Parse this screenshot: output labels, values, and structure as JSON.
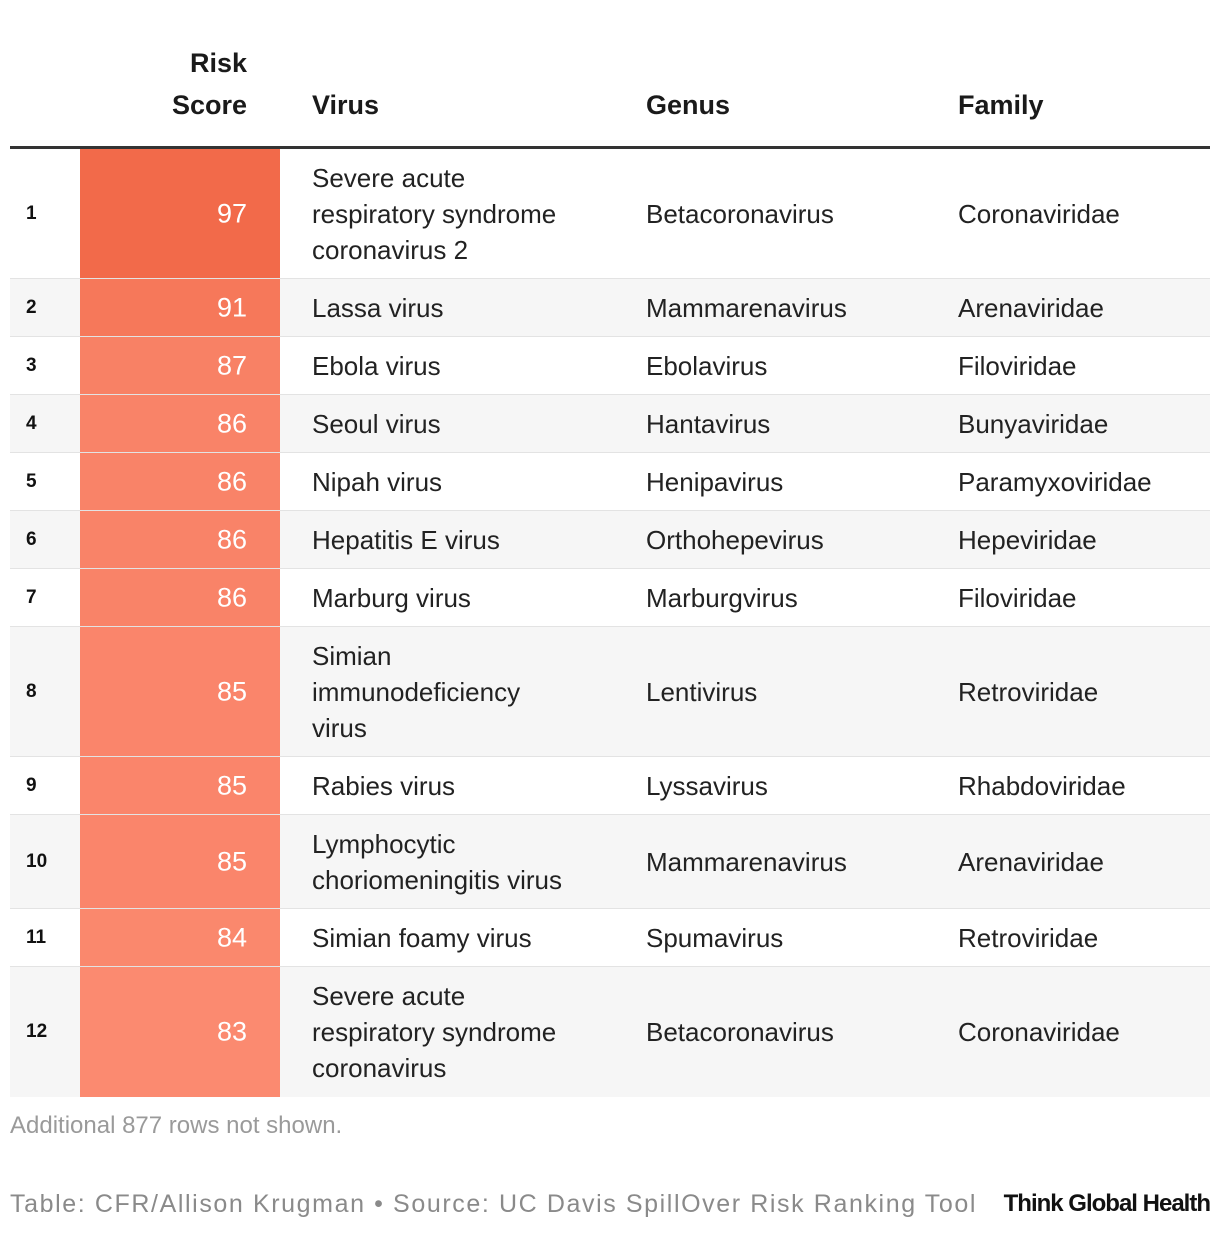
{
  "chart_data": {
    "type": "table",
    "columns": [
      "Risk Score",
      "Virus",
      "Genus",
      "Family"
    ],
    "rows": [
      {
        "rank": "1",
        "score": 97,
        "virus": "Severe acute respiratory syndrome coronavirus 2",
        "virus_lines": [
          "Severe acute",
          "respiratory syndrome",
          "coronavirus 2"
        ],
        "genus": "Betacoronavirus",
        "family": "Coronaviridae"
      },
      {
        "rank": "2",
        "score": 91,
        "virus": "Lassa virus",
        "virus_lines": [
          "Lassa virus"
        ],
        "genus": "Mammarenavirus",
        "family": "Arenaviridae"
      },
      {
        "rank": "3",
        "score": 87,
        "virus": "Ebola virus",
        "virus_lines": [
          "Ebola virus"
        ],
        "genus": "Ebolavirus",
        "family": "Filoviridae"
      },
      {
        "rank": "4",
        "score": 86,
        "virus": "Seoul virus",
        "virus_lines": [
          "Seoul virus"
        ],
        "genus": "Hantavirus",
        "family": "Bunyaviridae"
      },
      {
        "rank": "5",
        "score": 86,
        "virus": "Nipah virus",
        "virus_lines": [
          "Nipah virus"
        ],
        "genus": "Henipavirus",
        "family": "Paramyxoviridae"
      },
      {
        "rank": "6",
        "score": 86,
        "virus": "Hepatitis E virus",
        "virus_lines": [
          "Hepatitis E virus"
        ],
        "genus": "Orthohepevirus",
        "family": "Hepeviridae"
      },
      {
        "rank": "7",
        "score": 86,
        "virus": "Marburg virus",
        "virus_lines": [
          "Marburg virus"
        ],
        "genus": "Marburgvirus",
        "family": "Filoviridae"
      },
      {
        "rank": "8",
        "score": 85,
        "virus": "Simian immunodeficiency virus",
        "virus_lines": [
          "Simian",
          "immunodeficiency",
          "virus"
        ],
        "genus": "Lentivirus",
        "family": "Retroviridae"
      },
      {
        "rank": "9",
        "score": 85,
        "virus": "Rabies virus",
        "virus_lines": [
          "Rabies virus"
        ],
        "genus": "Lyssavirus",
        "family": "Rhabdoviridae"
      },
      {
        "rank": "10",
        "score": 85,
        "virus": "Lymphocytic choriomeningitis virus",
        "virus_lines": [
          "Lymphocytic",
          "choriomeningitis virus"
        ],
        "genus": "Mammarenavirus",
        "family": "Arenaviridae"
      },
      {
        "rank": "11",
        "score": 84,
        "virus": "Simian foamy virus",
        "virus_lines": [
          "Simian foamy virus"
        ],
        "genus": "Spumavirus",
        "family": "Retroviridae"
      },
      {
        "rank": "12",
        "score": 83,
        "virus": "Severe acute respiratory syndrome coronavirus",
        "virus_lines": [
          "Severe acute",
          "respiratory syndrome",
          "coronavirus"
        ],
        "genus": "Betacoronavirus",
        "family": "Coronaviridae"
      }
    ],
    "score_color_high": "#f26a4a",
    "score_color_low": "#fb8a70"
  },
  "header": {
    "score_line1": "Risk",
    "score_line2": "Score",
    "virus": "Virus",
    "genus": "Genus",
    "family": "Family"
  },
  "footnote": "Additional 877 rows not shown.",
  "source": "Table: CFR/Allison Krugman • Source: UC Davis SpillOver Risk Ranking Tool",
  "logo": "Think Global Health",
  "colors": {
    "header_rule": "#333333",
    "alt_row": "#f6f6f6"
  }
}
